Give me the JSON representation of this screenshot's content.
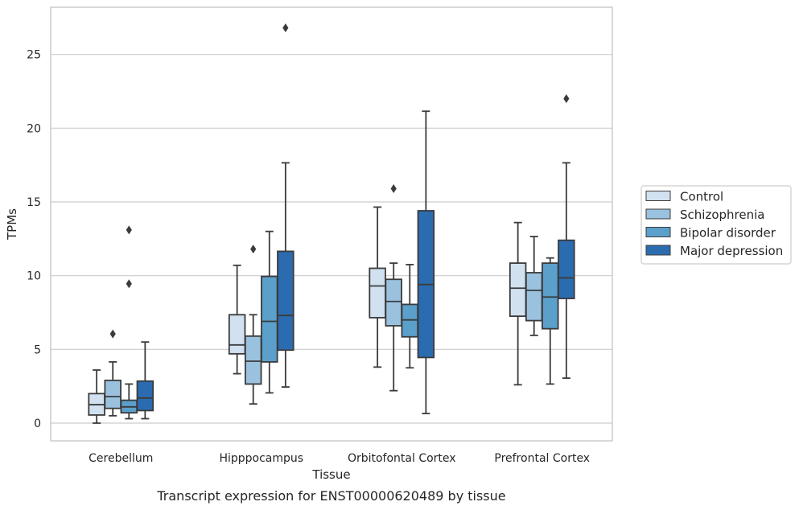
{
  "caption": "Transcript expression for ENST00000620489 by tissue",
  "chart_data": {
    "type": "box",
    "xlabel": "Tissue",
    "ylabel": "TPMs",
    "ylim": [
      -1.2,
      28.2
    ],
    "yticks": [
      0,
      5,
      10,
      15,
      20,
      25
    ],
    "grid": "horizontal",
    "legend_position": "right",
    "categories": [
      "Cerebellum",
      "Hipppocampus",
      "Orbitofontal Cortex",
      "Prefrontal Cortex"
    ],
    "series": [
      {
        "name": "Control",
        "color": "#d1e1f0",
        "boxes": [
          {
            "whisker_low": 0.0,
            "q1": 0.55,
            "median": 1.25,
            "q3": 2.0,
            "whisker_high": 3.6,
            "outliers": []
          },
          {
            "whisker_low": 3.35,
            "q1": 4.7,
            "median": 5.3,
            "q3": 7.35,
            "whisker_high": 10.7,
            "outliers": []
          },
          {
            "whisker_low": 3.8,
            "q1": 7.15,
            "median": 9.3,
            "q3": 10.5,
            "whisker_high": 14.65,
            "outliers": []
          },
          {
            "whisker_low": 2.6,
            "q1": 7.25,
            "median": 9.15,
            "q3": 10.85,
            "whisker_high": 13.6,
            "outliers": []
          }
        ]
      },
      {
        "name": "Schizophrenia",
        "color": "#9ac2df",
        "boxes": [
          {
            "whisker_low": 0.5,
            "q1": 1.0,
            "median": 1.8,
            "q3": 2.9,
            "whisker_high": 4.15,
            "outliers": [
              6.05
            ]
          },
          {
            "whisker_low": 1.3,
            "q1": 2.65,
            "median": 4.2,
            "q3": 5.9,
            "whisker_high": 7.35,
            "outliers": [
              11.8
            ]
          },
          {
            "whisker_low": 2.2,
            "q1": 6.6,
            "median": 8.25,
            "q3": 9.75,
            "whisker_high": 10.85,
            "outliers": [
              15.9
            ]
          },
          {
            "whisker_low": 5.95,
            "q1": 6.95,
            "median": 9.0,
            "q3": 10.2,
            "whisker_high": 12.65,
            "outliers": []
          }
        ]
      },
      {
        "name": "Bipolar disorder",
        "color": "#5b9fcb",
        "boxes": [
          {
            "whisker_low": 0.3,
            "q1": 0.7,
            "median": 1.1,
            "q3": 1.55,
            "whisker_high": 2.65,
            "outliers": [
              9.45,
              13.1
            ]
          },
          {
            "whisker_low": 2.05,
            "q1": 4.15,
            "median": 6.9,
            "q3": 9.95,
            "whisker_high": 13.0,
            "outliers": []
          },
          {
            "whisker_low": 3.75,
            "q1": 5.85,
            "median": 7.0,
            "q3": 8.05,
            "whisker_high": 10.75,
            "outliers": []
          },
          {
            "whisker_low": 2.65,
            "q1": 6.4,
            "median": 8.55,
            "q3": 10.85,
            "whisker_high": 11.2,
            "outliers": []
          }
        ]
      },
      {
        "name": "Major depression",
        "color": "#2b6cb0",
        "boxes": [
          {
            "whisker_low": 0.3,
            "q1": 0.85,
            "median": 1.7,
            "q3": 2.85,
            "whisker_high": 5.5,
            "outliers": []
          },
          {
            "whisker_low": 2.45,
            "q1": 4.95,
            "median": 7.3,
            "q3": 11.65,
            "whisker_high": 17.65,
            "outliers": [
              26.8
            ]
          },
          {
            "whisker_low": 0.65,
            "q1": 4.45,
            "median": 9.4,
            "q3": 14.4,
            "whisker_high": 21.15,
            "outliers": []
          },
          {
            "whisker_low": 3.05,
            "q1": 8.45,
            "median": 9.85,
            "q3": 12.4,
            "whisker_high": 17.65,
            "outliers": [
              22.0
            ]
          }
        ]
      }
    ]
  }
}
